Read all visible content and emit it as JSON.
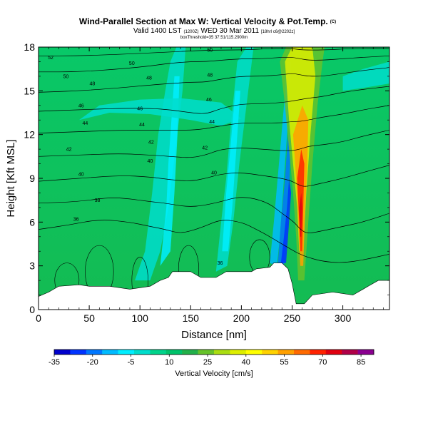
{
  "header": {
    "title": "Wind-Parallel Section at Max W: Vertical Velocity & Pot.Temp.",
    "title_mark": "(C)",
    "valid_main": "Valid 1400 LST",
    "valid_small": "(1200Z)",
    "valid_date": "WED 30 Mar 2011",
    "run_info": "[18hrl c6@2202z]",
    "source": "boxThreshold=35 37.51/115.2900m"
  },
  "chart_data": {
    "type": "heatmap",
    "xlabel": "Distance [nm]",
    "ylabel": "Height [Kft MSL]",
    "xlim": [
      0,
      346
    ],
    "ylim": [
      0,
      18
    ],
    "x_ticks": [
      "0",
      "50",
      "100",
      "150",
      "200",
      "250",
      "300"
    ],
    "x_tick_values": [
      0,
      50,
      100,
      150,
      200,
      250,
      300
    ],
    "y_ticks": [
      "0",
      "3",
      "6",
      "9",
      "12",
      "15",
      "18"
    ],
    "y_tick_values": [
      0,
      3,
      6,
      9,
      12,
      15,
      18
    ],
    "terrain": [
      [
        0,
        0.9
      ],
      [
        10,
        1.2
      ],
      [
        20,
        1.6
      ],
      [
        40,
        1.7
      ],
      [
        50,
        1.6
      ],
      [
        70,
        1.6
      ],
      [
        90,
        1.4
      ],
      [
        110,
        1.6
      ],
      [
        120,
        2.0
      ],
      [
        128,
        2.2
      ],
      [
        132,
        2.6
      ],
      [
        150,
        2.6
      ],
      [
        160,
        2.2
      ],
      [
        175,
        2.2
      ],
      [
        185,
        2.6
      ],
      [
        210,
        2.6
      ],
      [
        215,
        2.8
      ],
      [
        228,
        2.9
      ],
      [
        232,
        3.2
      ],
      [
        240,
        3.2
      ],
      [
        246,
        2.8
      ],
      [
        250,
        1.8
      ],
      [
        254,
        0.4
      ],
      [
        262,
        0.4
      ],
      [
        270,
        1.0
      ],
      [
        290,
        1.2
      ],
      [
        310,
        1.0
      ],
      [
        325,
        1.6
      ],
      [
        335,
        2.0
      ],
      [
        346,
        2.0
      ]
    ],
    "theta_contours": [
      {
        "label": "36",
        "x": [
          0,
          30,
          60,
          90,
          110,
          125,
          140,
          160,
          180,
          200,
          215,
          228,
          240,
          252,
          258,
          265,
          280,
          300,
          320,
          346
        ],
        "y": [
          5.5,
          5.8,
          6.2,
          6.0,
          5.7,
          5.5,
          5.2,
          5.6,
          6.2,
          6.0,
          5.5,
          5.0,
          4.5,
          4.0,
          3.8,
          3.6,
          3.3,
          3.2,
          3.4,
          3.8
        ]
      },
      {
        "label": "38",
        "x": [
          0,
          40,
          70,
          90,
          110,
          125,
          150,
          175,
          200,
          225,
          240,
          252,
          258,
          265,
          280,
          300,
          320,
          346
        ],
        "y": [
          7.3,
          7.4,
          7.7,
          7.6,
          7.4,
          7.3,
          7.0,
          7.3,
          7.8,
          7.4,
          6.6,
          6.0,
          5.5,
          5.2,
          5.4,
          5.7,
          6.0,
          6.6
        ]
      },
      {
        "label": "40",
        "x": [
          0,
          40,
          80,
          110,
          130,
          150,
          165,
          180,
          200,
          220,
          240,
          250,
          255,
          262,
          275,
          300,
          320,
          346
        ],
        "y": [
          8.8,
          9.0,
          9.2,
          9.1,
          8.9,
          8.8,
          9.0,
          9.3,
          9.4,
          9.2,
          9.0,
          8.8,
          8.6,
          8.4,
          8.6,
          9.0,
          9.4,
          9.9
        ]
      },
      {
        "label": "42",
        "x": [
          0,
          40,
          80,
          110,
          130,
          150,
          165,
          180,
          200,
          220,
          240,
          250,
          258,
          266,
          280,
          300,
          320,
          346
        ],
        "y": [
          10.5,
          10.6,
          10.7,
          10.6,
          10.5,
          10.4,
          10.6,
          11.0,
          11.1,
          11.0,
          10.9,
          10.9,
          11.0,
          11.2,
          11.3,
          11.5,
          11.9,
          12.3
        ]
      },
      {
        "label": "44",
        "x": [
          0,
          40,
          80,
          110,
          130,
          150,
          165,
          180,
          200,
          220,
          240,
          250,
          258,
          266,
          280,
          300,
          320,
          346
        ],
        "y": [
          12.1,
          12.2,
          12.3,
          12.3,
          12.3,
          12.3,
          12.4,
          12.6,
          12.8,
          12.8,
          12.8,
          12.9,
          12.9,
          13.0,
          13.2,
          13.4,
          13.7,
          14.0
        ]
      },
      {
        "label": "46",
        "x": [
          0,
          40,
          80,
          110,
          130,
          150,
          165,
          180,
          200,
          220,
          240,
          250,
          258,
          266,
          280,
          300,
          320,
          346
        ],
        "y": [
          13.6,
          13.7,
          13.8,
          13.8,
          13.7,
          13.5,
          13.4,
          13.8,
          14.1,
          14.1,
          14.2,
          14.3,
          14.4,
          14.5,
          14.6,
          14.9,
          15.1,
          15.3
        ]
      },
      {
        "label": "48",
        "x": [
          0,
          40,
          80,
          110,
          130,
          150,
          165,
          180,
          200,
          220,
          240,
          250,
          258,
          266,
          280,
          300,
          320,
          346
        ],
        "y": [
          14.9,
          15.0,
          15.2,
          15.4,
          15.5,
          15.6,
          15.6,
          15.8,
          16.0,
          16.0,
          16.1,
          16.2,
          16.1,
          16.0,
          16.0,
          16.2,
          16.4,
          16.6
        ]
      },
      {
        "label": "50",
        "x": [
          0,
          40,
          80,
          110,
          130,
          150,
          165,
          180,
          200,
          220,
          240,
          250,
          258,
          266,
          280,
          300,
          320,
          346
        ],
        "y": [
          16.3,
          16.3,
          16.5,
          16.7,
          16.9,
          17.0,
          17.0,
          17.1,
          17.2,
          17.2,
          17.3,
          17.3,
          17.2,
          17.1,
          17.1,
          17.2,
          17.3,
          17.4
        ]
      },
      {
        "label": "52",
        "x": [
          0,
          40,
          80,
          110,
          140,
          170,
          200,
          230,
          250,
          260,
          280,
          310,
          346
        ],
        "y": [
          17.4,
          17.4,
          17.5,
          17.6,
          17.7,
          17.8,
          17.8,
          17.9,
          17.9,
          17.8,
          17.8,
          17.9,
          17.9
        ]
      }
    ],
    "contour_labels": [
      {
        "text": "52",
        "x": 12,
        "y": 17.3
      },
      {
        "text": "50",
        "x": 27,
        "y": 16.0
      },
      {
        "text": "48",
        "x": 53,
        "y": 15.5
      },
      {
        "text": "46",
        "x": 42,
        "y": 14.0
      },
      {
        "text": "44",
        "x": 46,
        "y": 12.8
      },
      {
        "text": "42",
        "x": 30,
        "y": 11.0
      },
      {
        "text": "40",
        "x": 42,
        "y": 9.3
      },
      {
        "text": "38",
        "x": 58,
        "y": 7.5
      },
      {
        "text": "36",
        "x": 37,
        "y": 6.2
      },
      {
        "text": "50",
        "x": 92,
        "y": 16.9
      },
      {
        "text": "48",
        "x": 109,
        "y": 15.9
      },
      {
        "text": "46",
        "x": 100,
        "y": 13.8
      },
      {
        "text": "44",
        "x": 102,
        "y": 12.7
      },
      {
        "text": "42",
        "x": 111,
        "y": 11.5
      },
      {
        "text": "40",
        "x": 110,
        "y": 10.2
      },
      {
        "text": "50",
        "x": 169,
        "y": 17.8
      },
      {
        "text": "48",
        "x": 169,
        "y": 16.1
      },
      {
        "text": "46",
        "x": 168,
        "y": 14.4
      },
      {
        "text": "44",
        "x": 171,
        "y": 12.9
      },
      {
        "text": "42",
        "x": 164,
        "y": 11.1
      },
      {
        "text": "40",
        "x": 173,
        "y": 9.4
      },
      {
        "text": "36",
        "x": 179,
        "y": 3.2
      }
    ],
    "colorbar": {
      "label": "Vertical Velocity [cm/s]",
      "ticks": [
        "-35",
        "-20",
        "-5",
        "10",
        "25",
        "40",
        "55",
        "70",
        "85"
      ],
      "tick_values": [
        -35,
        -20,
        -5,
        10,
        25,
        40,
        55,
        70,
        85
      ],
      "range": [
        -35,
        90
      ],
      "colors": [
        "#0000cc",
        "#0033ff",
        "#0077ff",
        "#00bbff",
        "#00eeff",
        "#00ddcc",
        "#00d38a",
        "#00c26a",
        "#22b04a",
        "#66c22a",
        "#aadd11",
        "#ddee00",
        "#ffff00",
        "#ffd200",
        "#ffa000",
        "#ff6a00",
        "#ff2200",
        "#e00010",
        "#b00048",
        "#8a0090"
      ]
    }
  }
}
